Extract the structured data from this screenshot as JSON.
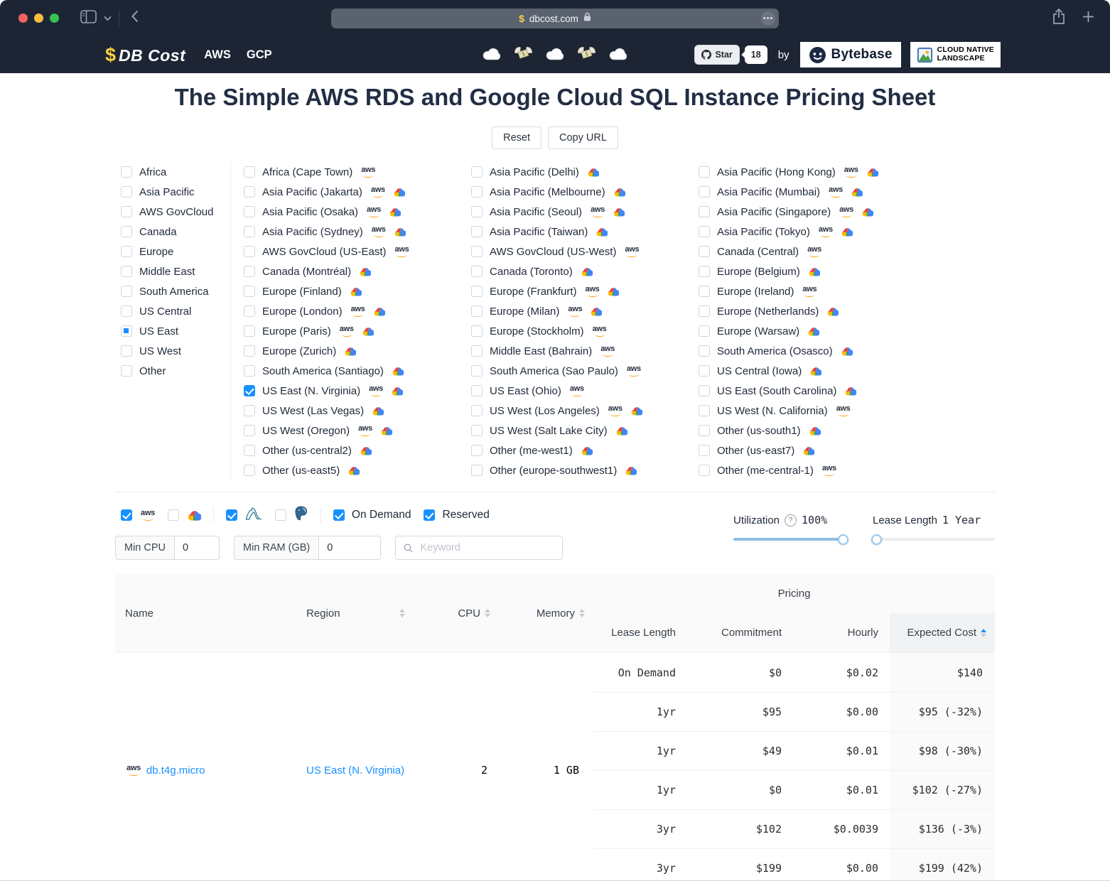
{
  "browser": {
    "url": "dbcost.com"
  },
  "header": {
    "logo_dollar": "$",
    "logo_text": "DB Cost",
    "nav": [
      "AWS",
      "GCP"
    ],
    "emojis": [
      "cloud",
      "money-with-wings",
      "cloud",
      "money-with-wings",
      "cloud"
    ],
    "star_label": "Star",
    "star_count": "18",
    "by_text": "by",
    "bytebase_label": "Bytebase",
    "landscape_line1": "CLOUD NATIVE",
    "landscape_line2": "LANDSCAPE"
  },
  "page": {
    "title": "The Simple AWS RDS and Google Cloud SQL Instance Pricing Sheet",
    "reset_label": "Reset",
    "copy_url_label": "Copy URL"
  },
  "regions": {
    "groups": [
      {
        "label": "Africa",
        "state": "off"
      },
      {
        "label": "Asia Pacific",
        "state": "off"
      },
      {
        "label": "AWS GovCloud",
        "state": "off"
      },
      {
        "label": "Canada",
        "state": "off"
      },
      {
        "label": "Europe",
        "state": "off"
      },
      {
        "label": "Middle East",
        "state": "off"
      },
      {
        "label": "South America",
        "state": "off"
      },
      {
        "label": "US Central",
        "state": "off"
      },
      {
        "label": "US East",
        "state": "indeterminate"
      },
      {
        "label": "US West",
        "state": "off"
      },
      {
        "label": "Other",
        "state": "off"
      }
    ],
    "columns": [
      [
        {
          "label": "Africa (Cape Town)",
          "providers": [
            "aws"
          ],
          "state": "off"
        },
        {
          "label": "Asia Pacific (Jakarta)",
          "providers": [
            "aws",
            "gcp"
          ],
          "state": "off"
        },
        {
          "label": "Asia Pacific (Osaka)",
          "providers": [
            "aws",
            "gcp"
          ],
          "state": "off"
        },
        {
          "label": "Asia Pacific (Sydney)",
          "providers": [
            "aws",
            "gcp"
          ],
          "state": "off"
        },
        {
          "label": "AWS GovCloud (US-East)",
          "providers": [
            "aws"
          ],
          "state": "off"
        },
        {
          "label": "Canada (Montréal)",
          "providers": [
            "gcp"
          ],
          "state": "off"
        },
        {
          "label": "Europe (Finland)",
          "providers": [
            "gcp"
          ],
          "state": "off"
        },
        {
          "label": "Europe (London)",
          "providers": [
            "aws",
            "gcp"
          ],
          "state": "off"
        },
        {
          "label": "Europe (Paris)",
          "providers": [
            "aws",
            "gcp"
          ],
          "state": "off"
        },
        {
          "label": "Europe (Zurich)",
          "providers": [
            "gcp"
          ],
          "state": "off"
        },
        {
          "label": "South America (Santiago)",
          "providers": [
            "gcp"
          ],
          "state": "off"
        },
        {
          "label": "US East (N. Virginia)",
          "providers": [
            "aws",
            "gcp"
          ],
          "state": "checked"
        },
        {
          "label": "US West (Las Vegas)",
          "providers": [
            "gcp"
          ],
          "state": "off"
        },
        {
          "label": "US West (Oregon)",
          "providers": [
            "aws",
            "gcp"
          ],
          "state": "off"
        },
        {
          "label": "Other (us-central2)",
          "providers": [
            "gcp"
          ],
          "state": "off"
        },
        {
          "label": "Other (us-east5)",
          "providers": [
            "gcp"
          ],
          "state": "off"
        }
      ],
      [
        {
          "label": "Asia Pacific (Delhi)",
          "providers": [
            "gcp"
          ],
          "state": "off"
        },
        {
          "label": "Asia Pacific (Melbourne)",
          "providers": [
            "gcp"
          ],
          "state": "off"
        },
        {
          "label": "Asia Pacific (Seoul)",
          "providers": [
            "aws",
            "gcp"
          ],
          "state": "off"
        },
        {
          "label": "Asia Pacific (Taiwan)",
          "providers": [
            "gcp"
          ],
          "state": "off"
        },
        {
          "label": "AWS GovCloud (US-West)",
          "providers": [
            "aws"
          ],
          "state": "off"
        },
        {
          "label": "Canada (Toronto)",
          "providers": [
            "gcp"
          ],
          "state": "off"
        },
        {
          "label": "Europe (Frankfurt)",
          "providers": [
            "aws",
            "gcp"
          ],
          "state": "off"
        },
        {
          "label": "Europe (Milan)",
          "providers": [
            "aws",
            "gcp"
          ],
          "state": "off"
        },
        {
          "label": "Europe (Stockholm)",
          "providers": [
            "aws"
          ],
          "state": "off"
        },
        {
          "label": "Middle East (Bahrain)",
          "providers": [
            "aws"
          ],
          "state": "off"
        },
        {
          "label": "South America (Sao Paulo)",
          "providers": [
            "aws"
          ],
          "state": "off"
        },
        {
          "label": "US East (Ohio)",
          "providers": [
            "aws"
          ],
          "state": "off"
        },
        {
          "label": "US West (Los Angeles)",
          "providers": [
            "aws",
            "gcp"
          ],
          "state": "off"
        },
        {
          "label": "US West (Salt Lake City)",
          "providers": [
            "gcp"
          ],
          "state": "off"
        },
        {
          "label": "Other (me-west1)",
          "providers": [
            "gcp"
          ],
          "state": "off"
        },
        {
          "label": "Other (europe-southwest1)",
          "providers": [
            "gcp"
          ],
          "state": "off"
        }
      ],
      [
        {
          "label": "Asia Pacific (Hong Kong)",
          "providers": [
            "aws",
            "gcp"
          ],
          "state": "off"
        },
        {
          "label": "Asia Pacific (Mumbai)",
          "providers": [
            "aws",
            "gcp"
          ],
          "state": "off"
        },
        {
          "label": "Asia Pacific (Singapore)",
          "providers": [
            "aws",
            "gcp"
          ],
          "state": "off"
        },
        {
          "label": "Asia Pacific (Tokyo)",
          "providers": [
            "aws",
            "gcp"
          ],
          "state": "off"
        },
        {
          "label": "Canada (Central)",
          "providers": [
            "aws"
          ],
          "state": "off"
        },
        {
          "label": "Europe (Belgium)",
          "providers": [
            "gcp"
          ],
          "state": "off"
        },
        {
          "label": "Europe (Ireland)",
          "providers": [
            "aws"
          ],
          "state": "off"
        },
        {
          "label": "Europe (Netherlands)",
          "providers": [
            "gcp"
          ],
          "state": "off"
        },
        {
          "label": "Europe (Warsaw)",
          "providers": [
            "gcp"
          ],
          "state": "off"
        },
        {
          "label": "South America (Osasco)",
          "providers": [
            "gcp"
          ],
          "state": "off"
        },
        {
          "label": "US Central (Iowa)",
          "providers": [
            "gcp"
          ],
          "state": "off"
        },
        {
          "label": "US East (South Carolina)",
          "providers": [
            "gcp"
          ],
          "state": "off"
        },
        {
          "label": "US West (N. California)",
          "providers": [
            "aws"
          ],
          "state": "off"
        },
        {
          "label": "Other (us-south1)",
          "providers": [
            "gcp"
          ],
          "state": "off"
        },
        {
          "label": "Other (us-east7)",
          "providers": [
            "gcp"
          ],
          "state": "off"
        },
        {
          "label": "Other (me-central-1)",
          "providers": [
            "aws"
          ],
          "state": "off"
        }
      ]
    ]
  },
  "filters": {
    "providers": [
      {
        "name": "aws",
        "checked": true
      },
      {
        "name": "gcp",
        "checked": false
      }
    ],
    "engines": [
      {
        "name": "mysql",
        "checked": true
      },
      {
        "name": "postgres",
        "checked": false
      }
    ],
    "charge_types": [
      {
        "label": "On Demand",
        "checked": true
      },
      {
        "label": "Reserved",
        "checked": true
      }
    ],
    "min_cpu": {
      "label": "Min CPU",
      "value": "0"
    },
    "min_ram": {
      "label": "Min RAM (GB)",
      "value": "0"
    },
    "keyword": {
      "placeholder": "Keyword"
    },
    "utilization": {
      "label": "Utilization",
      "value": "100%",
      "percent": 100
    },
    "lease": {
      "label": "Lease Length",
      "value": "1 Year",
      "percent": 0
    }
  },
  "table": {
    "headers": {
      "name": "Name",
      "region": "Region",
      "cpu": "CPU",
      "memory": "Memory",
      "pricing": "Pricing",
      "lease": "Lease Length",
      "commitment": "Commitment",
      "hourly": "Hourly",
      "expected": "Expected Cost"
    },
    "instance": {
      "name": "db.t4g.micro",
      "provider": "aws",
      "region": "US East (N. Virginia)",
      "cpu": "2",
      "memory": "1 GB"
    },
    "rows": [
      {
        "lease": "On Demand",
        "commitment": "$0",
        "hourly": "$0.02",
        "expected": "$140"
      },
      {
        "lease": "1yr",
        "commitment": "$95",
        "hourly": "$0.00",
        "expected": "$95 (-32%)"
      },
      {
        "lease": "1yr",
        "commitment": "$49",
        "hourly": "$0.01",
        "expected": "$98 (-30%)"
      },
      {
        "lease": "1yr",
        "commitment": "$0",
        "hourly": "$0.01",
        "expected": "$102 (-27%)"
      },
      {
        "lease": "3yr",
        "commitment": "$102",
        "hourly": "$0.0039",
        "expected": "$136 (-3%)"
      },
      {
        "lease": "3yr",
        "commitment": "$199",
        "hourly": "$0.00",
        "expected": "$199 (42%)"
      }
    ]
  }
}
